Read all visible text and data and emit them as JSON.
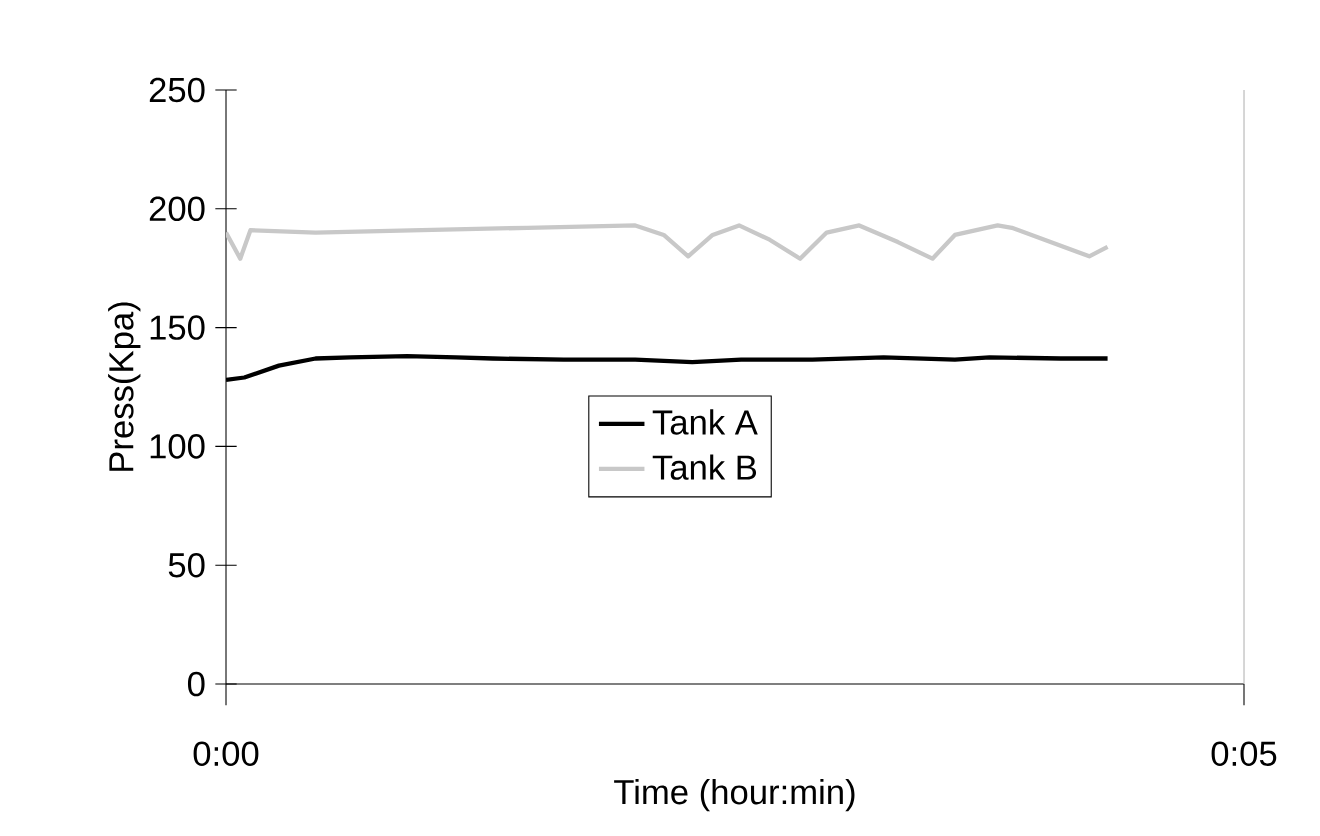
{
  "chart_data": {
    "type": "line",
    "xlabel": "Time (hour:min)",
    "ylabel": "Press(Kpa)",
    "xlim": [
      0,
      5
    ],
    "xticks": [
      {
        "value": 0,
        "label": "0:00"
      },
      {
        "value": 5,
        "label": "0:05"
      }
    ],
    "ylim": [
      0,
      250
    ],
    "yticks": [
      0,
      50,
      100,
      150,
      200,
      250
    ],
    "grid": false,
    "legend": "center",
    "marker": "none",
    "line_style": "solid",
    "series": [
      {
        "name": "Tank A",
        "color": "#000000",
        "x": [
          0,
          0.09,
          0.26,
          0.44,
          0.61,
          0.89,
          1.13,
          1.31,
          1.66,
          2.01,
          2.29,
          2.53,
          2.88,
          3.23,
          3.58,
          3.75,
          4.1,
          4.33
        ],
        "values": [
          128,
          129,
          134,
          137,
          137.5,
          138,
          137.5,
          137,
          136.5,
          136.5,
          135.5,
          136.5,
          136.5,
          137.5,
          136.5,
          137.5,
          137,
          137
        ]
      },
      {
        "name": "Tank B",
        "color": "#c8c8c8",
        "x": [
          0,
          0.07,
          0.12,
          0.44,
          0.96,
          1.48,
          2.01,
          2.15,
          2.27,
          2.39,
          2.52,
          2.67,
          2.82,
          2.95,
          3.11,
          3.3,
          3.47,
          3.58,
          3.79,
          3.86,
          4.24,
          4.33
        ],
        "values": [
          190,
          179,
          191,
          190,
          191,
          192,
          193,
          189,
          180,
          189,
          193,
          187,
          179,
          190,
          193,
          186,
          179,
          189,
          193,
          192,
          180,
          184
        ]
      }
    ]
  }
}
